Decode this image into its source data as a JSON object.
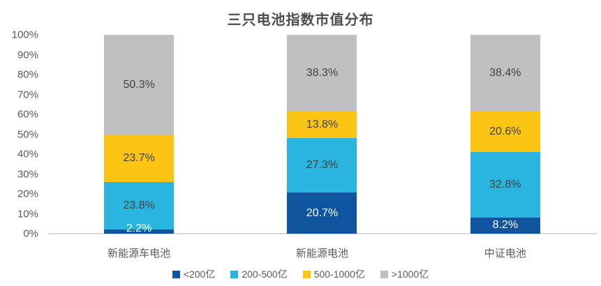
{
  "chart_data": {
    "type": "bar",
    "stacked": true,
    "title": "三只电池指数市值分布",
    "categories": [
      "新能源车电池",
      "新能源电池",
      "中证电池"
    ],
    "series": [
      {
        "name": "<200亿",
        "color": "#10559F",
        "label_color": "#ffffff",
        "values": [
          2.2,
          20.7,
          8.2
        ]
      },
      {
        "name": "200-500亿",
        "color": "#29B5E0",
        "label_color": "#404040",
        "values": [
          23.8,
          27.3,
          32.8
        ]
      },
      {
        "name": "500-1000亿",
        "color": "#FDC513",
        "label_color": "#404040",
        "values": [
          23.7,
          13.8,
          20.6
        ]
      },
      {
        "name": ">1000亿",
        "color": "#C0C0C0",
        "label_color": "#404040",
        "values": [
          50.3,
          38.3,
          38.4
        ]
      }
    ],
    "y_ticks": [
      "0%",
      "10%",
      "20%",
      "30%",
      "40%",
      "50%",
      "60%",
      "70%",
      "80%",
      "90%",
      "100%"
    ],
    "ylim": [
      0,
      100
    ],
    "grid": false,
    "legend_position": "bottom",
    "value_suffix": "%",
    "axis_color": "#d9d9d9",
    "tick_label_color": "#595959"
  }
}
